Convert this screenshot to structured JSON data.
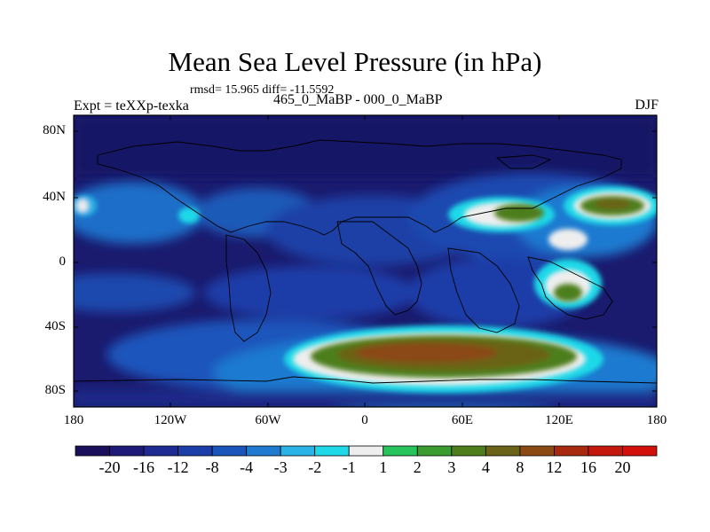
{
  "title": "Mean Sea Level Pressure (in hPa)",
  "stats": "rmsd= 15.965 diff= -11.5592",
  "left_label": "Expt = teXXp-texka",
  "center_label": "465_0_MaBP - 000_0_MaBP",
  "right_label": "DJF",
  "lat_ticks": [
    "80N",
    "40N",
    "0",
    "40S",
    "80S"
  ],
  "lon_ticks": [
    "180",
    "120W",
    "60W",
    "0",
    "60E",
    "120E",
    "180"
  ],
  "colorbar": {
    "labels": [
      "-20",
      "-16",
      "-12",
      "-8",
      "-4",
      "-3",
      "-2",
      "-1",
      "1",
      "2",
      "3",
      "4",
      "8",
      "12",
      "16",
      "20"
    ],
    "colors": [
      "#1a0f5a",
      "#1d1a78",
      "#1d2b93",
      "#1c3ea8",
      "#1a55bb",
      "#1f7ad0",
      "#2ab3e6",
      "#1fd9e8",
      "#eeeeee",
      "#27c45c",
      "#3a9c2e",
      "#4e7e1c",
      "#6b6418",
      "#8a4a12",
      "#a82a0e",
      "#c5180c",
      "#d4100a"
    ]
  },
  "colors": {
    "background": "#1a1a6e",
    "land_outline": "#000000"
  }
}
